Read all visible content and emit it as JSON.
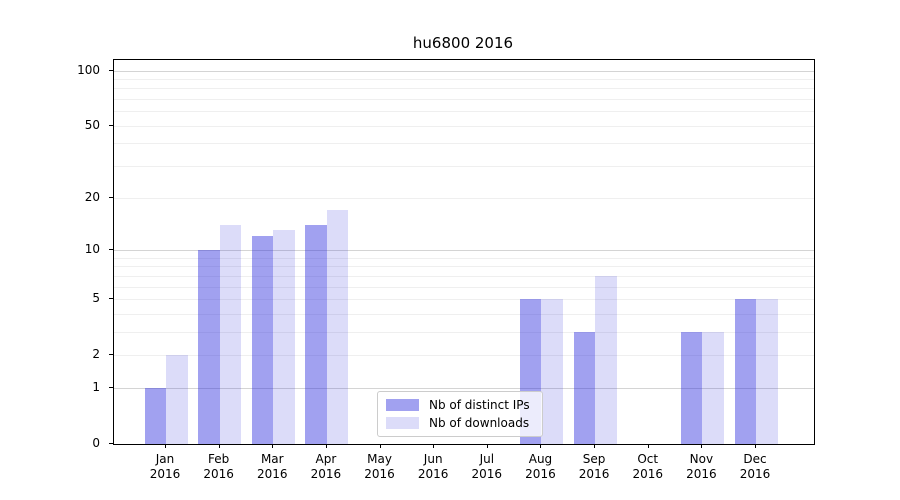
{
  "chart_data": {
    "type": "bar",
    "title": "hu6800 2016",
    "categories": [
      "Jan",
      "Feb",
      "Mar",
      "Apr",
      "May",
      "Jun",
      "Jul",
      "Aug",
      "Sep",
      "Oct",
      "Nov",
      "Dec"
    ],
    "category_year": "2016",
    "series": [
      {
        "name": "Nb of distinct IPs",
        "color": "rgba(40,40,220,0.44)",
        "values": [
          1,
          10,
          12,
          14,
          0,
          0,
          0,
          5,
          3,
          0,
          3,
          5
        ]
      },
      {
        "name": "Nb of downloads",
        "color": "rgba(40,40,220,0.16)",
        "values": [
          2,
          14,
          13,
          17,
          0,
          0,
          0,
          5,
          7,
          0,
          3,
          5
        ]
      }
    ],
    "yscale": "log1p",
    "ylim": [
      0,
      114
    ],
    "yticks": [
      0,
      1,
      2,
      5,
      10,
      20,
      50,
      100
    ],
    "ytick_labels": [
      "0",
      "1",
      "2",
      "5",
      "10",
      "20",
      "50",
      "100"
    ],
    "major_gridlines": [
      1,
      10,
      100
    ],
    "minor_gridlines": [
      2,
      3,
      4,
      5,
      6,
      7,
      8,
      9,
      20,
      30,
      40,
      50,
      60,
      70,
      80,
      90
    ],
    "grid": "horizontal",
    "legend_position": "lower center"
  },
  "colors": {
    "bar_distinct_ips": "rgba(40,40,220,0.44)",
    "bar_downloads": "rgba(40,40,220,0.16)",
    "grid_major": "#d4d4d4",
    "grid_minor": "#efefef",
    "axis": "#000000",
    "legend_border": "#cccccc"
  }
}
